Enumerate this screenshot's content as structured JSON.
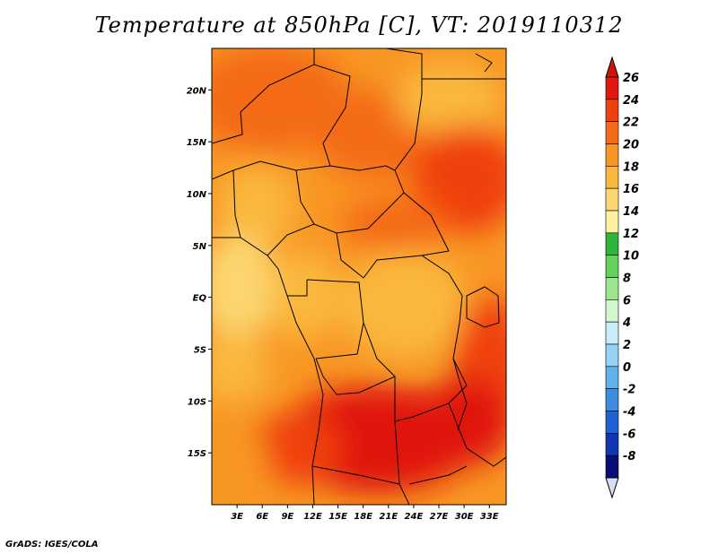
{
  "title": "Temperature at 850hPa [C], VT: 2019110312",
  "credit": "GrADS: IGES/COLA",
  "map": {
    "lon_range": [
      0,
      35
    ],
    "lat_range": [
      -20,
      24
    ],
    "lat_ticks": [
      "20N",
      "15N",
      "10N",
      "5N",
      "EQ",
      "5S",
      "10S",
      "15S"
    ],
    "lat_tick_values": [
      20,
      15,
      10,
      5,
      0,
      -5,
      -10,
      -15
    ],
    "lon_ticks": [
      "3E",
      "6E",
      "9E",
      "12E",
      "15E",
      "18E",
      "21E",
      "24E",
      "27E",
      "30E",
      "33E"
    ],
    "lon_tick_values": [
      3,
      6,
      9,
      12,
      15,
      18,
      21,
      24,
      27,
      30,
      33
    ]
  },
  "colorbar": {
    "labels": [
      "26",
      "24",
      "22",
      "20",
      "18",
      "16",
      "14",
      "12",
      "10",
      "8",
      "6",
      "4",
      "2",
      "0",
      "-2",
      "-4",
      "-6",
      "-8"
    ],
    "colors": [
      "#e01810",
      "#f04010",
      "#f46a16",
      "#f89624",
      "#fab83e",
      "#fcd670",
      "#fef0a0",
      "#2fb43c",
      "#62d25a",
      "#9ce68e",
      "#d2f6ce",
      "#c8ecfa",
      "#96d2f4",
      "#60b2ec",
      "#3c8ee0",
      "#2062d6",
      "#1036b4",
      "#0a0c78"
    ],
    "top_arrow_color": "#d01408",
    "bottom_arrow_color": "#d8dcf4"
  }
}
